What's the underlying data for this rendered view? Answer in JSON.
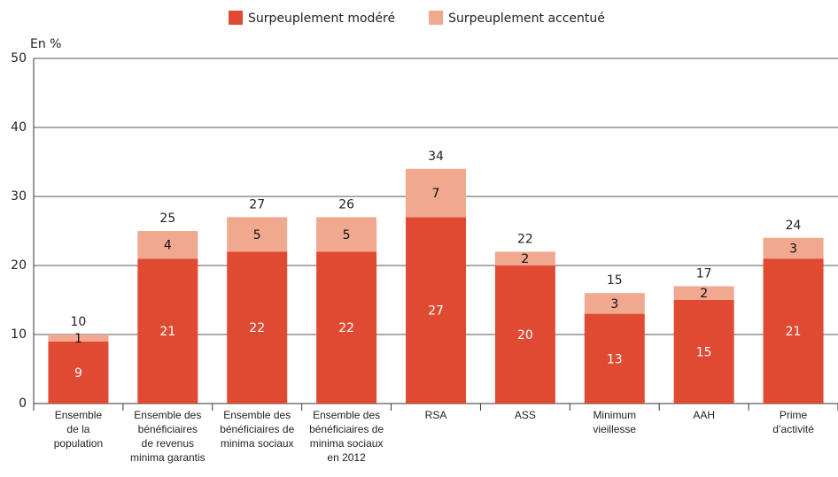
{
  "chart_data": {
    "type": "stacked_bar",
    "y_label": "En %",
    "categories": [
      [
        "Ensemble",
        "de la",
        "population"
      ],
      [
        "Ensemble des",
        "bénéficiaires",
        "de revenus",
        "minima garantis"
      ],
      [
        "Ensemble des",
        "bénéficiaires de",
        "minima sociaux"
      ],
      [
        "Ensemble des",
        "bénéficiaires de",
        "minima sociaux",
        "en 2012"
      ],
      [
        "RSA"
      ],
      [
        "ASS"
      ],
      [
        "Minimum",
        "vieillesse"
      ],
      [
        "AAH"
      ],
      [
        "Prime",
        "d’activité"
      ]
    ],
    "series": [
      {
        "name": "Surpeuplement modéré",
        "color": "#e04a33",
        "label_color": "#ffffff",
        "values": [
          9,
          21,
          22,
          22,
          27,
          20,
          13,
          15,
          21
        ]
      },
      {
        "name": "Surpeuplement accentué",
        "color": "#f0a88e",
        "label_color": "#111111",
        "values": [
          1,
          4,
          5,
          5,
          7,
          2,
          3,
          2,
          3
        ]
      }
    ],
    "totals": [
      10,
      25,
      27,
      26,
      34,
      22,
      15,
      17,
      24
    ],
    "ylim": [
      0,
      50
    ],
    "yticks": [
      0,
      10,
      20,
      30,
      40,
      50
    ],
    "grid": true
  }
}
